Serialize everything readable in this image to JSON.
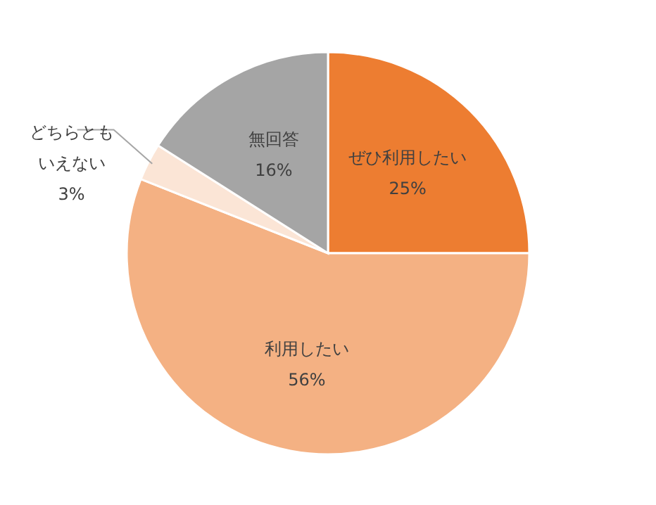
{
  "chart_data": {
    "type": "pie",
    "categories": [
      "ぜひ利用したい",
      "利用したい",
      "どちらともいえない",
      "無回答"
    ],
    "values": [
      25,
      56,
      3,
      16
    ],
    "colors": [
      "#ed7d31",
      "#f4b183",
      "#fbe5d6",
      "#a5a5a5"
    ],
    "value_labels": [
      "25%",
      "56%",
      "3%",
      "16%"
    ]
  }
}
